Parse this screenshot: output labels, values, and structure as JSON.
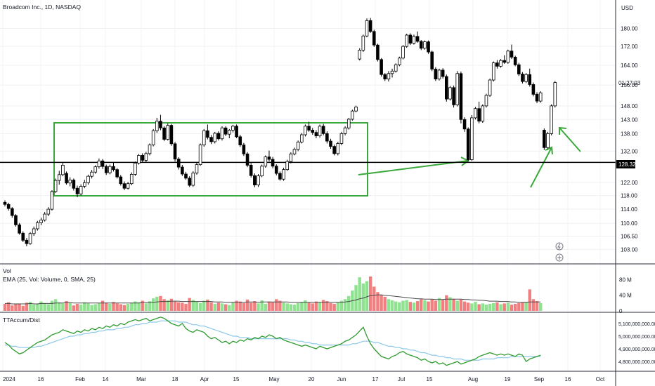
{
  "header": {
    "title": "Broadcom Inc., 1D, NASDAQ",
    "currency": "USD"
  },
  "price_panel": {
    "last_price": "128.32",
    "countdown": "01:27:03",
    "y_ticks": [
      "180.00",
      "172.00",
      "164.00",
      "156.00",
      "148.00",
      "143.00",
      "138.00",
      "132.00",
      "122.00",
      "118.00",
      "114.00",
      "110.00",
      "106.50",
      "103.00"
    ]
  },
  "volume_panel": {
    "title": "Vol",
    "ema_label": "EMA (25, Vol: Volume, 0, SMA, 25)",
    "y_ticks": [
      "80 M",
      "40 M",
      "0"
    ]
  },
  "indicator_panel": {
    "title": "TTAccum/Dist",
    "y_ticks": [
      "5,100,000,000.00",
      "5,000,000,000.00",
      "4,900,000,000.00",
      "4,800,000,000.00"
    ]
  },
  "x_axis": {
    "ticks": [
      "2024",
      "16",
      "Feb",
      "14",
      "Mar",
      "18",
      "Apr",
      "15",
      "May",
      "20",
      "Jun",
      "17",
      "Jul",
      "15",
      "Aug",
      "19",
      "Sep",
      "16",
      "Oct"
    ]
  },
  "colors": {
    "up": "#ffffff",
    "down": "#000000",
    "candle_border": "#000000",
    "vol_up": "#8fe28f",
    "vol_down": "#f27f7f",
    "annotation": "#3aa83a",
    "support_line": "#000000",
    "ad_line": "#2e9c2e",
    "ad_ema": "#8ec8e8"
  },
  "chart_data": {
    "type": "candlestick",
    "title": "Broadcom Inc., 1D, NASDAQ",
    "start_label": "2024",
    "ylim": [
      100,
      186
    ],
    "horizontal_line": 128.32,
    "ohlc": [
      [
        116.0,
        116.6,
        114.8,
        115.4
      ],
      [
        115.4,
        115.9,
        113.6,
        114.2
      ],
      [
        114.2,
        114.6,
        111.6,
        112.2
      ],
      [
        112.2,
        112.6,
        109.1,
        109.6
      ],
      [
        109.6,
        110.1,
        106.9,
        107.3
      ],
      [
        107.3,
        107.8,
        104.9,
        105.4
      ],
      [
        105.4,
        106.0,
        103.8,
        104.5
      ],
      [
        104.5,
        107.6,
        104.2,
        107.2
      ],
      [
        107.2,
        109.1,
        106.6,
        108.5
      ],
      [
        108.5,
        110.7,
        108.0,
        110.2
      ],
      [
        110.2,
        111.6,
        109.5,
        110.9
      ],
      [
        110.9,
        113.2,
        110.5,
        112.6
      ],
      [
        112.6,
        114.6,
        112.0,
        114.0
      ],
      [
        114.0,
        119.6,
        113.6,
        119.2
      ],
      [
        119.2,
        123.2,
        118.8,
        122.6
      ],
      [
        122.6,
        125.6,
        121.3,
        124.4
      ],
      [
        124.4,
        128.2,
        123.9,
        127.4
      ],
      [
        124.8,
        125.4,
        121.3,
        121.8
      ],
      [
        121.8,
        123.6,
        120.8,
        122.7
      ],
      [
        122.7,
        123.2,
        119.5,
        120.2
      ],
      [
        120.2,
        121.0,
        117.5,
        118.5
      ],
      [
        118.5,
        121.4,
        118.0,
        120.8
      ],
      [
        120.8,
        122.8,
        120.2,
        121.9
      ],
      [
        121.9,
        124.4,
        121.3,
        123.9
      ],
      [
        123.9,
        125.9,
        123.2,
        125.2
      ],
      [
        125.2,
        127.4,
        124.7,
        126.9
      ],
      [
        126.9,
        129.6,
        126.3,
        128.8
      ],
      [
        128.8,
        129.4,
        126.2,
        127.0
      ],
      [
        127.0,
        127.6,
        124.3,
        125.0
      ],
      [
        125.0,
        127.6,
        124.5,
        127.0
      ],
      [
        127.0,
        128.2,
        125.4,
        126.0
      ],
      [
        126.0,
        126.5,
        123.2,
        123.7
      ],
      [
        123.7,
        124.3,
        121.0,
        121.6
      ],
      [
        121.6,
        122.3,
        119.6,
        120.2
      ],
      [
        120.2,
        122.2,
        119.8,
        121.6
      ],
      [
        121.6,
        125.1,
        121.1,
        124.5
      ],
      [
        124.5,
        128.6,
        124.0,
        128.1
      ],
      [
        128.1,
        131.1,
        127.6,
        130.6
      ],
      [
        130.6,
        131.3,
        128.3,
        129.0
      ],
      [
        129.0,
        131.8,
        128.4,
        131.2
      ],
      [
        131.2,
        134.6,
        130.6,
        134.1
      ],
      [
        134.1,
        139.6,
        133.6,
        139.0
      ],
      [
        139.0,
        143.6,
        138.2,
        142.4
      ],
      [
        142.4,
        144.7,
        139.2,
        140.0
      ],
      [
        140.0,
        140.6,
        135.4,
        136.0
      ],
      [
        136.0,
        141.6,
        135.6,
        140.9
      ],
      [
        140.9,
        141.4,
        133.8,
        134.5
      ],
      [
        134.5,
        135.1,
        128.6,
        129.4
      ],
      [
        129.4,
        130.0,
        126.0,
        126.8
      ],
      [
        126.8,
        127.5,
        124.0,
        124.6
      ],
      [
        124.6,
        125.3,
        122.8,
        123.3
      ],
      [
        123.3,
        123.9,
        120.6,
        121.1
      ],
      [
        121.1,
        125.5,
        120.6,
        124.9
      ],
      [
        124.9,
        128.2,
        124.4,
        127.6
      ],
      [
        127.6,
        134.6,
        127.2,
        134.1
      ],
      [
        134.1,
        139.6,
        133.5,
        139.0
      ],
      [
        139.0,
        141.2,
        136.0,
        136.7
      ],
      [
        136.7,
        137.5,
        134.4,
        135.2
      ],
      [
        135.2,
        138.6,
        134.6,
        138.1
      ],
      [
        138.1,
        138.8,
        135.6,
        136.2
      ],
      [
        136.2,
        140.6,
        135.6,
        140.0
      ],
      [
        140.0,
        140.6,
        137.1,
        137.8
      ],
      [
        137.8,
        139.6,
        136.4,
        139.2
      ],
      [
        139.2,
        141.1,
        138.4,
        140.6
      ],
      [
        140.6,
        141.2,
        136.4,
        136.9
      ],
      [
        136.9,
        137.6,
        133.4,
        134.1
      ],
      [
        134.1,
        134.8,
        130.4,
        131.1
      ],
      [
        131.1,
        131.7,
        126.8,
        127.4
      ],
      [
        127.4,
        128.1,
        123.5,
        124.1
      ],
      [
        124.1,
        124.8,
        120.5,
        121.2
      ],
      [
        121.2,
        124.6,
        120.6,
        124.0
      ],
      [
        124.0,
        127.6,
        123.6,
        127.1
      ],
      [
        127.1,
        130.6,
        126.6,
        130.1
      ],
      [
        130.1,
        132.2,
        128.6,
        129.3
      ],
      [
        129.3,
        130.1,
        126.4,
        127.1
      ],
      [
        127.1,
        127.7,
        124.2,
        124.8
      ],
      [
        124.8,
        125.4,
        122.5,
        123.0
      ],
      [
        123.0,
        126.6,
        122.5,
        126.0
      ],
      [
        126.0,
        129.2,
        125.6,
        128.6
      ],
      [
        128.6,
        131.6,
        128.0,
        131.1
      ],
      [
        131.1,
        133.2,
        130.6,
        132.6
      ],
      [
        132.6,
        135.6,
        132.0,
        135.1
      ],
      [
        135.1,
        138.2,
        134.6,
        137.6
      ],
      [
        137.6,
        141.2,
        137.0,
        140.6
      ],
      [
        140.6,
        142.2,
        138.6,
        139.2
      ],
      [
        139.2,
        140.0,
        137.6,
        138.4
      ],
      [
        138.4,
        139.2,
        136.4,
        137.2
      ],
      [
        137.2,
        141.2,
        136.6,
        140.6
      ],
      [
        140.6,
        141.4,
        137.4,
        138.0
      ],
      [
        138.0,
        138.8,
        134.6,
        135.4
      ],
      [
        135.4,
        136.2,
        132.8,
        133.6
      ],
      [
        133.6,
        134.2,
        130.6,
        131.2
      ],
      [
        131.2,
        135.2,
        130.6,
        134.6
      ],
      [
        134.6,
        138.6,
        134.0,
        138.0
      ],
      [
        138.0,
        140.6,
        137.4,
        140.0
      ],
      [
        140.0,
        143.6,
        139.4,
        143.1
      ],
      [
        143.1,
        146.6,
        142.6,
        146.1
      ],
      [
        146.1,
        148.1,
        145.6,
        147.6
      ],
      [
        166.6,
        171.2,
        166.0,
        170.4
      ],
      [
        170.4,
        177.2,
        169.6,
        176.6
      ],
      [
        176.6,
        184.6,
        176.0,
        183.6
      ],
      [
        183.6,
        184.8,
        178.0,
        178.6
      ],
      [
        178.6,
        179.4,
        171.8,
        172.6
      ],
      [
        172.6,
        173.2,
        165.6,
        166.4
      ],
      [
        166.4,
        167.0,
        159.4,
        160.2
      ],
      [
        160.2,
        160.8,
        157.6,
        158.4
      ],
      [
        158.4,
        161.6,
        157.4,
        160.6
      ],
      [
        160.6,
        162.6,
        159.0,
        161.6
      ],
      [
        161.6,
        164.8,
        161.0,
        164.2
      ],
      [
        164.2,
        167.6,
        163.6,
        167.0
      ],
      [
        167.0,
        172.6,
        166.4,
        172.0
      ],
      [
        172.0,
        177.6,
        171.4,
        177.0
      ],
      [
        177.0,
        177.8,
        172.6,
        173.4
      ],
      [
        173.4,
        177.2,
        172.8,
        176.4
      ],
      [
        176.4,
        178.6,
        173.6,
        174.2
      ],
      [
        174.2,
        174.8,
        170.4,
        171.2
      ],
      [
        171.2,
        174.6,
        170.6,
        174.0
      ],
      [
        174.0,
        174.6,
        168.8,
        169.6
      ],
      [
        169.6,
        170.2,
        161.6,
        162.4
      ],
      [
        162.4,
        163.2,
        157.6,
        158.4
      ],
      [
        158.4,
        162.6,
        157.8,
        162.0
      ],
      [
        162.0,
        162.8,
        158.6,
        159.4
      ],
      [
        159.4,
        160.2,
        149.6,
        150.6
      ],
      [
        150.6,
        155.6,
        150.0,
        155.0
      ],
      [
        155.0,
        155.8,
        147.4,
        148.4
      ],
      [
        148.4,
        161.6,
        147.8,
        160.6
      ],
      [
        160.6,
        161.4,
        141.6,
        143.0
      ],
      [
        143.0,
        143.8,
        138.6,
        139.6
      ],
      [
        139.6,
        140.2,
        128.6,
        129.2
      ],
      [
        129.2,
        144.6,
        128.8,
        143.6
      ],
      [
        143.6,
        147.6,
        143.0,
        147.0
      ],
      [
        147.0,
        149.6,
        141.6,
        142.4
      ],
      [
        142.4,
        148.6,
        141.8,
        148.0
      ],
      [
        148.0,
        152.6,
        147.4,
        152.0
      ],
      [
        152.0,
        158.6,
        151.4,
        158.0
      ],
      [
        158.0,
        165.6,
        157.4,
        165.0
      ],
      [
        165.0,
        166.2,
        162.6,
        163.6
      ],
      [
        163.6,
        166.6,
        163.0,
        166.0
      ],
      [
        166.0,
        168.2,
        164.6,
        165.2
      ],
      [
        165.2,
        170.6,
        164.6,
        170.0
      ],
      [
        170.0,
        172.8,
        166.6,
        167.4
      ],
      [
        167.4,
        168.0,
        163.6,
        164.2
      ],
      [
        164.2,
        165.0,
        159.6,
        160.4
      ],
      [
        160.4,
        161.2,
        156.6,
        157.4
      ],
      [
        157.4,
        160.8,
        156.8,
        160.2
      ],
      [
        160.2,
        162.6,
        155.4,
        156.2
      ],
      [
        156.2,
        157.0,
        151.6,
        152.4
      ],
      [
        152.4,
        153.2,
        149.0,
        149.8
      ],
      [
        149.8,
        153.6,
        149.2,
        153.0
      ],
      [
        139.2,
        139.8,
        132.4,
        133.2
      ],
      [
        133.2,
        138.6,
        132.6,
        138.0
      ],
      [
        138.0,
        148.6,
        137.4,
        148.0
      ],
      [
        148.0,
        157.6,
        147.4,
        157.0
      ]
    ],
    "volume_m": [
      18,
      22,
      14,
      17,
      19,
      13,
      21,
      23,
      16,
      18,
      24,
      20,
      17,
      26,
      30,
      22,
      19,
      25,
      21,
      14,
      18,
      16,
      22,
      19,
      15,
      17,
      20,
      26,
      21,
      18,
      23,
      19,
      17,
      15,
      18,
      21,
      24,
      22,
      26,
      19,
      25,
      32,
      36,
      38,
      30,
      27,
      31,
      24,
      22,
      21,
      18,
      33,
      28,
      24,
      20,
      26,
      29,
      22,
      18,
      21,
      19,
      17,
      15,
      22,
      26,
      24,
      20,
      29,
      21,
      25,
      19,
      27,
      18,
      24,
      22,
      30,
      26,
      21,
      19,
      17,
      16,
      20,
      23,
      27,
      21,
      19,
      24,
      22,
      28,
      25,
      20,
      18,
      22,
      26,
      30,
      38,
      52,
      66,
      86,
      70,
      76,
      88,
      62,
      48,
      41,
      36,
      30,
      27,
      24,
      22,
      26,
      28,
      23,
      21,
      25,
      30,
      27,
      24,
      29,
      26,
      33,
      28,
      40,
      35,
      31,
      26,
      29,
      24,
      21,
      19,
      23,
      17,
      19,
      16,
      18,
      20,
      22,
      17,
      19,
      21,
      16,
      18,
      20,
      22,
      23,
      55,
      30,
      25,
      20
    ],
    "volume_ema_m": [
      19,
      19,
      18,
      18,
      18,
      18,
      18,
      19,
      18,
      18,
      19,
      19,
      19,
      19,
      20,
      20,
      20,
      21,
      21,
      20,
      20,
      20,
      20,
      20,
      20,
      20,
      20,
      20,
      20,
      20,
      20,
      20,
      20,
      20,
      20,
      20,
      20,
      20,
      21,
      21,
      21,
      22,
      23,
      24,
      24,
      24,
      25,
      25,
      25,
      24,
      24,
      24,
      24,
      24,
      24,
      24,
      24,
      24,
      23,
      23,
      23,
      22,
      22,
      22,
      22,
      22,
      22,
      23,
      23,
      23,
      22,
      23,
      23,
      23,
      23,
      23,
      23,
      23,
      23,
      22,
      22,
      22,
      22,
      22,
      22,
      22,
      22,
      22,
      22,
      22,
      22,
      22,
      22,
      22,
      23,
      24,
      26,
      28,
      31,
      33,
      36,
      39,
      40,
      41,
      41,
      40,
      39,
      38,
      37,
      36,
      35,
      34,
      33,
      32,
      31,
      31,
      30,
      30,
      30,
      29,
      29,
      29,
      30,
      30,
      30,
      30,
      30,
      29,
      29,
      28,
      28,
      27,
      27,
      26,
      25,
      25,
      25,
      24,
      24,
      24,
      23,
      23,
      22,
      22,
      22,
      23,
      23,
      23,
      23
    ],
    "ad_line_b": [
      4.95,
      4.93,
      4.9,
      4.88,
      4.86,
      4.87,
      4.89,
      4.91,
      4.93,
      4.95,
      4.96,
      4.97,
      4.99,
      5.01,
      5.02,
      5.03,
      5.05,
      5.04,
      5.03,
      5.02,
      5.04,
      5.03,
      5.05,
      5.04,
      5.06,
      5.05,
      5.07,
      5.06,
      5.08,
      5.07,
      5.09,
      5.08,
      5.1,
      5.09,
      5.11,
      5.12,
      5.13,
      5.12,
      5.13,
      5.14,
      5.12,
      5.13,
      5.14,
      5.15,
      5.14,
      5.12,
      5.1,
      5.09,
      5.08,
      5.1,
      5.06,
      5.04,
      5.03,
      5.05,
      5.04,
      5.03,
      5.0,
      4.98,
      4.99,
      4.97,
      4.95,
      4.96,
      4.94,
      4.96,
      4.95,
      4.97,
      4.96,
      4.98,
      4.97,
      4.99,
      4.98,
      5.0,
      4.99,
      5.01,
      5.0,
      4.98,
      4.99,
      4.97,
      4.96,
      4.95,
      4.94,
      4.93,
      4.92,
      4.93,
      4.92,
      4.91,
      4.9,
      4.92,
      4.91,
      4.9,
      4.91,
      4.92,
      4.93,
      4.94,
      4.96,
      4.97,
      4.99,
      5.01,
      5.04,
      5.07,
      5.0,
      4.94,
      4.9,
      4.87,
      4.84,
      4.83,
      4.82,
      4.84,
      4.85,
      4.87,
      4.88,
      4.86,
      4.85,
      4.84,
      4.83,
      4.81,
      4.82,
      4.8,
      4.79,
      4.8,
      4.78,
      4.79,
      4.77,
      4.78,
      4.79,
      4.8,
      4.78,
      4.79,
      4.8,
      4.81,
      4.82,
      4.84,
      4.85,
      4.86,
      4.87,
      4.86,
      4.85,
      4.86,
      4.85,
      4.86,
      4.85,
      4.84,
      4.86,
      4.85,
      4.8,
      4.82,
      4.83,
      4.84,
      4.85
    ],
    "ad_ema_b": [
      4.93,
      4.93,
      4.92,
      4.92,
      4.91,
      4.91,
      4.91,
      4.91,
      4.91,
      4.92,
      4.92,
      4.93,
      4.94,
      4.95,
      4.96,
      4.97,
      4.98,
      4.99,
      5.0,
      5.0,
      5.01,
      5.01,
      5.02,
      5.02,
      5.03,
      5.03,
      5.04,
      5.04,
      5.05,
      5.05,
      5.05,
      5.06,
      5.06,
      5.07,
      5.07,
      5.08,
      5.09,
      5.09,
      5.1,
      5.1,
      5.11,
      5.11,
      5.11,
      5.12,
      5.12,
      5.12,
      5.12,
      5.12,
      5.11,
      5.11,
      5.11,
      5.1,
      5.09,
      5.09,
      5.08,
      5.08,
      5.07,
      5.06,
      5.05,
      5.04,
      5.03,
      5.02,
      5.01,
      5.0,
      5.0,
      4.99,
      4.99,
      4.99,
      4.98,
      4.98,
      4.98,
      4.98,
      4.98,
      4.98,
      4.98,
      4.98,
      4.98,
      4.98,
      4.98,
      4.97,
      4.97,
      4.96,
      4.96,
      4.95,
      4.95,
      4.94,
      4.94,
      4.93,
      4.93,
      4.93,
      4.93,
      4.93,
      4.93,
      4.93,
      4.93,
      4.93,
      4.94,
      4.94,
      4.95,
      4.96,
      4.96,
      4.96,
      4.95,
      4.95,
      4.94,
      4.93,
      4.92,
      4.92,
      4.91,
      4.91,
      4.9,
      4.9,
      4.89,
      4.89,
      4.88,
      4.87,
      4.87,
      4.86,
      4.85,
      4.85,
      4.84,
      4.84,
      4.83,
      4.83,
      4.82,
      4.82,
      4.82,
      4.81,
      4.81,
      4.81,
      4.81,
      4.81,
      4.82,
      4.82,
      4.82,
      4.82,
      4.83,
      4.83,
      4.83,
      4.83,
      4.84,
      4.84,
      4.84,
      4.84,
      4.84,
      4.84,
      4.84,
      4.84,
      4.84
    ],
    "ad_ylim_b": [
      4.74,
      5.16
    ],
    "volume_ylim_m": [
      0,
      95
    ]
  }
}
